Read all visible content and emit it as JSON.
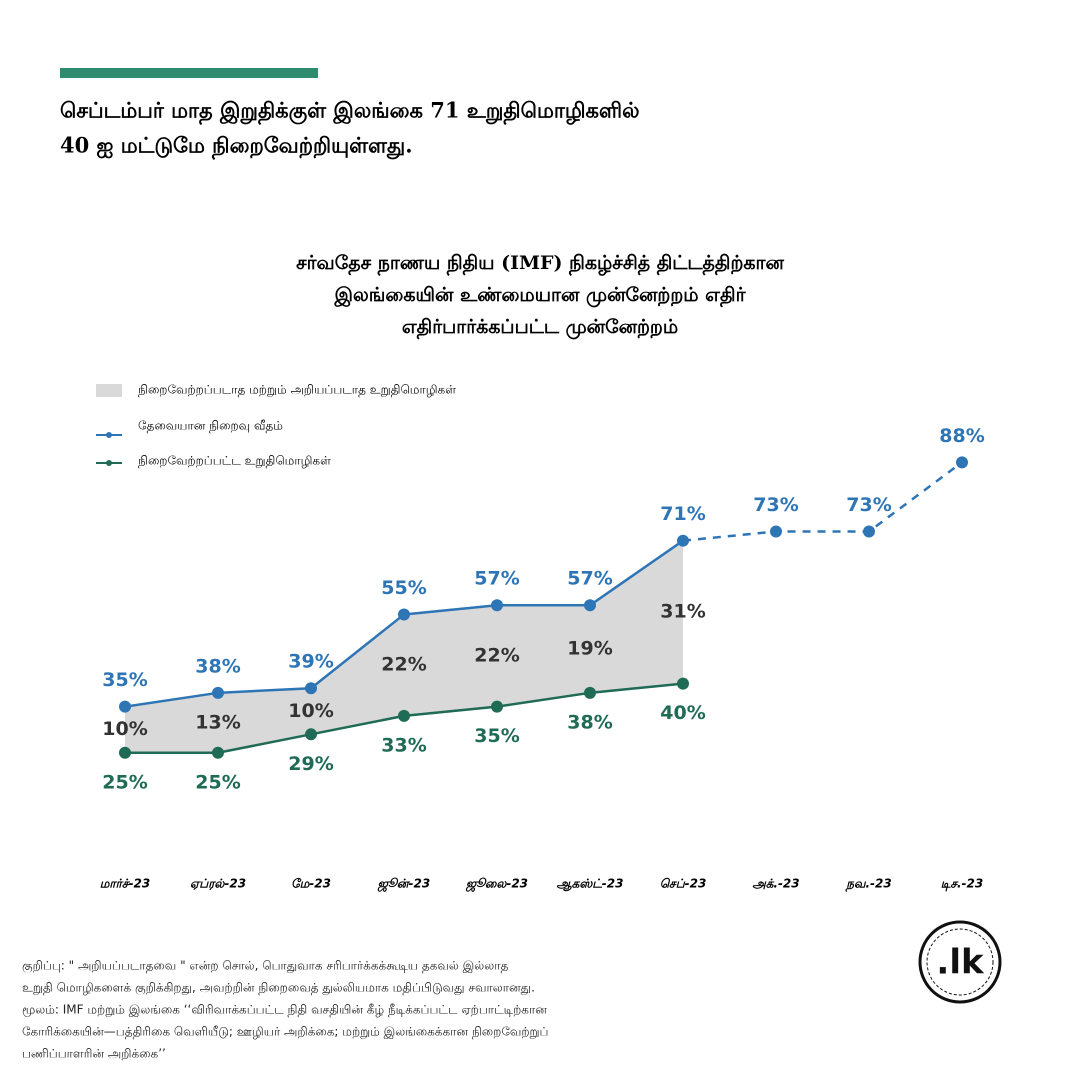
{
  "chart_data": {
    "type": "line",
    "headline": [
      "செப்டம்பர் மாத இறுதிக்குள் இலங்கை  71 உறுதிமொழிகளில்",
      "40 ஐ மட்டுமே நிறைவேற்றியுள்ளது."
    ],
    "title": [
      "சர்வதேச நாணய நிதிய (IMF) நிகழ்ச்சித் திட்டத்திற்கான",
      "இலங்கையின் உண்மையான முன்னேற்றம் எதிர்",
      "எதிர்பார்க்கப்பட்ட முன்னேற்றம்"
    ],
    "categories": [
      "மார்ச்-23",
      "ஏப்ரல்-23",
      "மே-23",
      "ஜூன்-23",
      "ஜூலை-23",
      "ஆகஸ்ட்-23",
      "செப்-23",
      "அக்.-23",
      "நவ.-23",
      "டிச.-23"
    ],
    "series": [
      {
        "name": "தேவையான நிறைவு  வீதம்",
        "color": "#2e75b6",
        "values": [
          35,
          38,
          39,
          55,
          57,
          57,
          71,
          73,
          73,
          88
        ],
        "value_labels": [
          "35%",
          "38%",
          "39%",
          "55%",
          "57%",
          "57%",
          "71%",
          "73%",
          "73%",
          "88%"
        ]
      },
      {
        "name": "நிறைவேற்றப்பட்ட உறுதிமொழிகள்",
        "color": "#1f6b55",
        "values": [
          25,
          25,
          29,
          33,
          35,
          38,
          40,
          null,
          null,
          null
        ],
        "value_labels": [
          "25%",
          "25%",
          "29%",
          "33%",
          "35%",
          "38%",
          "40%",
          null,
          null,
          null
        ]
      },
      {
        "name": "நிறைவேற்றப்படாத மற்றும் அறியப்படாத உறுதிமொழிகள்",
        "color": "#d9d9d9",
        "values": [
          10,
          13,
          10,
          22,
          22,
          19,
          31,
          null,
          null,
          null
        ],
        "value_labels": [
          "10%",
          "13%",
          "10%",
          "22%",
          "22%",
          "19%",
          "31%",
          null,
          null,
          null
        ]
      }
    ],
    "dashed_from_index": 6,
    "ylim": [
      0,
      100
    ],
    "note": [
      "குறிப்பு: \" அறியப்படாதவை \" என்ற சொல், பொதுவாக சரிபார்க்கக்கூடிய தகவல் இல்லாத",
      "உறுதி மொழிகளைக் குறிக்கிறது, அவற்றின் நிறைவைத் துல்லியமாக மதிப்பிடுவது சவாலானது.",
      "மூலம்: IMF மற்றும் இலங்கை ‘‘விரிவாக்கப்பட்ட நிதி வசதியின் கீழ் நீடிக்கப்பட்ட ஏற்பாட்டிற்கான",
      "கோரிக்கையின்—பத்திரிகை வெளியீடு; ஊழியர் அறிக்கை; மற்றும் இலங்கைக்கான நிறைவேற்றுப்",
      "பணிப்பாளரின் அறிக்கை’’"
    ],
    "logo": ".lk"
  }
}
